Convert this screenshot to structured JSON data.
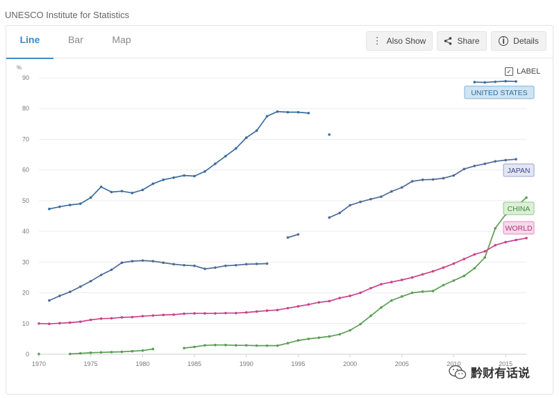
{
  "source": "UNESCO Institute for Statistics",
  "tabs": [
    {
      "label": "Line",
      "active": true
    },
    {
      "label": "Bar",
      "active": false
    },
    {
      "label": "Map",
      "active": false
    }
  ],
  "buttons": {
    "also_show": "Also Show",
    "share": "Share",
    "details": "Details"
  },
  "label_toggle": {
    "label": "LABEL",
    "checked": true
  },
  "watermark": "黔财有话说",
  "colors": {
    "united_states": "#3a6c9e",
    "japan": "#4e6a96",
    "china": "#5a9e53",
    "world": "#c9428b"
  },
  "chart_data": {
    "type": "line",
    "ylabel": "%",
    "xlim": [
      1970,
      2017
    ],
    "ylim": [
      0,
      90
    ],
    "xticks": [
      1970,
      1975,
      1980,
      1985,
      1990,
      1995,
      2000,
      2005,
      2010,
      2015
    ],
    "yticks": [
      0,
      10,
      20,
      30,
      40,
      50,
      60,
      70,
      80,
      90
    ],
    "grid": true,
    "series": [
      {
        "name": "UNITED STATES",
        "color": "#3a6c9e",
        "points": [
          [
            1971,
            47.3
          ],
          [
            1972,
            48.0
          ],
          [
            1973,
            48.6
          ],
          [
            1974,
            49.0
          ],
          [
            1975,
            51.0
          ],
          [
            1976,
            54.5
          ],
          [
            1977,
            52.8
          ],
          [
            1978,
            53.1
          ],
          [
            1979,
            52.5
          ],
          [
            1980,
            53.5
          ],
          [
            1981,
            55.5
          ],
          [
            1982,
            56.8
          ],
          [
            1983,
            57.5
          ],
          [
            1984,
            58.2
          ],
          [
            1985,
            58.0
          ],
          [
            1986,
            59.5
          ],
          [
            1987,
            62.0
          ],
          [
            1988,
            64.5
          ],
          [
            1989,
            67.0
          ],
          [
            1990,
            70.5
          ],
          [
            1991,
            72.8
          ],
          [
            1992,
            77.5
          ],
          [
            1993,
            79.0
          ],
          [
            1994,
            78.8
          ],
          [
            1995,
            78.8
          ],
          [
            1996,
            78.5
          ],
          null,
          [
            1998,
            71.5
          ],
          null,
          [
            2012,
            88.6
          ],
          [
            2013,
            88.5
          ],
          [
            2014,
            88.7
          ],
          [
            2015,
            88.9
          ],
          [
            2016,
            88.8
          ]
        ]
      },
      {
        "name": "JAPAN",
        "color": "#4e6a96",
        "points": [
          [
            1971,
            17.5
          ],
          [
            1972,
            19.0
          ],
          [
            1973,
            20.3
          ],
          [
            1974,
            22.0
          ],
          [
            1975,
            23.8
          ],
          [
            1976,
            25.8
          ],
          [
            1977,
            27.5
          ],
          [
            1978,
            29.8
          ],
          [
            1979,
            30.3
          ],
          [
            1980,
            30.5
          ],
          [
            1981,
            30.3
          ],
          [
            1982,
            29.8
          ],
          [
            1983,
            29.3
          ],
          [
            1984,
            29.0
          ],
          [
            1985,
            28.8
          ],
          [
            1986,
            27.8
          ],
          [
            1987,
            28.2
          ],
          [
            1988,
            28.8
          ],
          [
            1989,
            29.0
          ],
          [
            1990,
            29.3
          ],
          [
            1991,
            29.4
          ],
          [
            1992,
            29.5
          ],
          null,
          [
            1994,
            38.0
          ],
          [
            1995,
            39.0
          ],
          null,
          [
            1998,
            44.5
          ],
          [
            1999,
            46.0
          ],
          [
            2000,
            48.5
          ],
          [
            2001,
            49.6
          ],
          [
            2002,
            50.5
          ],
          [
            2003,
            51.3
          ],
          [
            2004,
            53.0
          ],
          [
            2005,
            54.3
          ],
          [
            2006,
            56.3
          ],
          [
            2007,
            56.8
          ],
          [
            2008,
            56.9
          ],
          [
            2009,
            57.3
          ],
          [
            2010,
            58.2
          ],
          [
            2011,
            60.3
          ],
          [
            2012,
            61.3
          ],
          [
            2013,
            62.0
          ],
          [
            2014,
            62.8
          ],
          [
            2015,
            63.2
          ],
          [
            2016,
            63.5
          ]
        ]
      },
      {
        "name": "CHINA",
        "color": "#5a9e53",
        "points": [
          [
            1970,
            0.1
          ],
          null,
          [
            1973,
            0.1
          ],
          [
            1974,
            0.3
          ],
          [
            1975,
            0.5
          ],
          [
            1976,
            0.6
          ],
          [
            1977,
            0.7
          ],
          [
            1978,
            0.8
          ],
          [
            1979,
            1.0
          ],
          [
            1980,
            1.2
          ],
          [
            1981,
            1.7
          ],
          null,
          [
            1984,
            2.0
          ],
          [
            1985,
            2.4
          ],
          [
            1986,
            2.9
          ],
          [
            1987,
            3.0
          ],
          [
            1988,
            3.0
          ],
          [
            1989,
            2.9
          ],
          [
            1990,
            2.9
          ],
          [
            1991,
            2.8
          ],
          [
            1992,
            2.8
          ],
          [
            1993,
            2.8
          ],
          [
            1994,
            3.6
          ],
          [
            1995,
            4.5
          ],
          [
            1996,
            5.0
          ],
          [
            1997,
            5.4
          ],
          [
            1998,
            5.8
          ],
          [
            1999,
            6.5
          ],
          [
            2000,
            7.8
          ],
          [
            2001,
            9.8
          ],
          [
            2002,
            12.5
          ],
          [
            2003,
            15.2
          ],
          [
            2004,
            17.5
          ],
          [
            2005,
            18.8
          ],
          [
            2006,
            20.0
          ],
          [
            2007,
            20.4
          ],
          [
            2008,
            20.6
          ],
          [
            2009,
            22.5
          ],
          [
            2010,
            24.0
          ],
          [
            2011,
            25.5
          ],
          [
            2012,
            28.0
          ],
          [
            2013,
            31.5
          ],
          [
            2014,
            41.0
          ],
          [
            2015,
            45.5
          ],
          [
            2016,
            48.0
          ],
          [
            2017,
            51.0
          ]
        ]
      },
      {
        "name": "WORLD",
        "color": "#c9428b",
        "points": [
          [
            1970,
            10.0
          ],
          [
            1971,
            9.9
          ],
          [
            1972,
            10.1
          ],
          [
            1973,
            10.3
          ],
          [
            1974,
            10.6
          ],
          [
            1975,
            11.2
          ],
          [
            1976,
            11.6
          ],
          [
            1977,
            11.7
          ],
          [
            1978,
            12.0
          ],
          [
            1979,
            12.1
          ],
          [
            1980,
            12.4
          ],
          [
            1981,
            12.6
          ],
          [
            1982,
            12.8
          ],
          [
            1983,
            12.9
          ],
          [
            1984,
            13.2
          ],
          [
            1985,
            13.3
          ],
          [
            1986,
            13.3
          ],
          [
            1987,
            13.3
          ],
          [
            1988,
            13.4
          ],
          [
            1989,
            13.4
          ],
          [
            1990,
            13.6
          ],
          [
            1991,
            13.9
          ],
          [
            1992,
            14.2
          ],
          [
            1993,
            14.4
          ],
          [
            1994,
            15.0
          ],
          [
            1995,
            15.6
          ],
          [
            1996,
            16.2
          ],
          [
            1997,
            16.9
          ],
          [
            1998,
            17.3
          ],
          [
            1999,
            18.3
          ],
          [
            2000,
            19.0
          ],
          [
            2001,
            20.0
          ],
          [
            2002,
            21.5
          ],
          [
            2003,
            22.8
          ],
          [
            2004,
            23.5
          ],
          [
            2005,
            24.2
          ],
          [
            2006,
            25.0
          ],
          [
            2007,
            26.0
          ],
          [
            2008,
            27.0
          ],
          [
            2009,
            28.2
          ],
          [
            2010,
            29.5
          ],
          [
            2011,
            31.0
          ],
          [
            2012,
            32.5
          ],
          [
            2013,
            33.5
          ],
          [
            2014,
            35.5
          ],
          [
            2015,
            36.5
          ],
          [
            2016,
            37.2
          ],
          [
            2017,
            37.8
          ]
        ]
      }
    ]
  }
}
